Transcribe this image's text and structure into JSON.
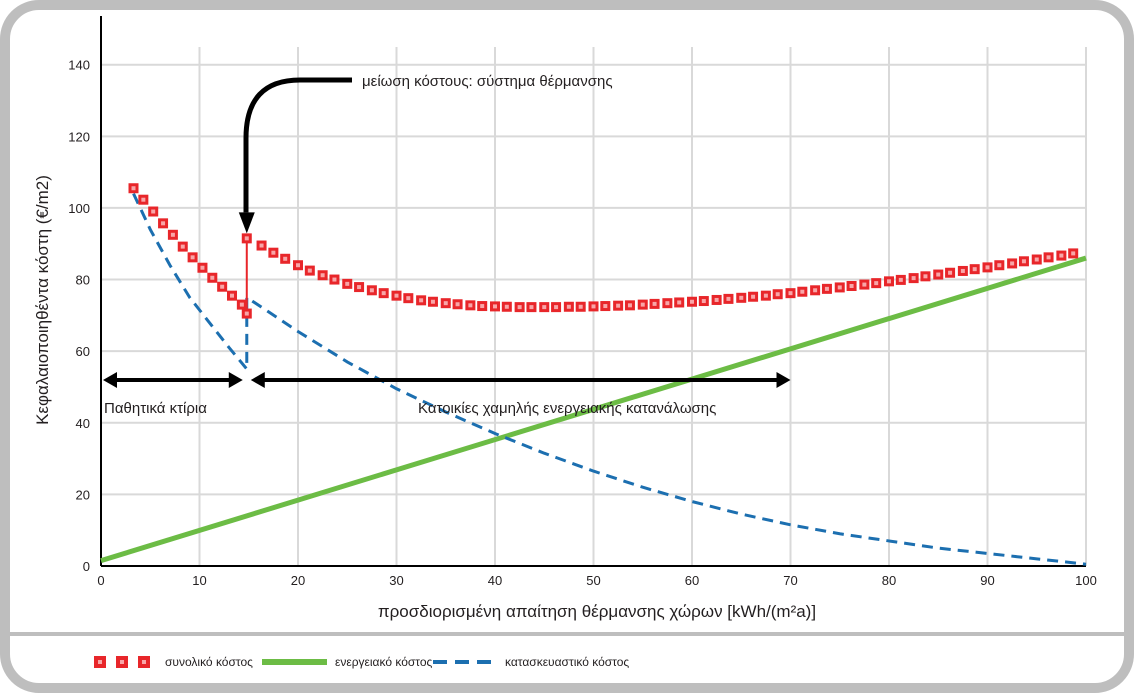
{
  "chart_data": {
    "type": "line",
    "title": "",
    "xlabel": "προσδιορισμένη απαίτηση θέρμανσης χώρων [kWh/(m²a)]",
    "ylabel": "Κεφαλαιοποιηθέντα κόστη (€/m2)",
    "xlim": [
      0,
      100
    ],
    "ylim": [
      0,
      155
    ],
    "x_ticks": [
      "0",
      "10",
      "20",
      "30",
      "40",
      "50",
      "60",
      "70",
      "80",
      "90",
      "100"
    ],
    "y_ticks": [
      "0",
      "20",
      "40",
      "60",
      "80",
      "100",
      "120",
      "140"
    ],
    "grid": true,
    "legend_position": "bottom",
    "series": [
      {
        "name": "συνολικό κόστος",
        "style": "square-markers",
        "color": "#e8262a",
        "points": [
          [
            3.3,
            105.5
          ],
          [
            4.3,
            102.3
          ],
          [
            5.3,
            99.0
          ],
          [
            6.3,
            95.7
          ],
          [
            7.3,
            92.5
          ],
          [
            8.3,
            89.2
          ],
          [
            9.3,
            86.2
          ],
          [
            10.3,
            83.3
          ],
          [
            11.3,
            80.5
          ],
          [
            12.3,
            78.0
          ],
          [
            13.3,
            75.5
          ],
          [
            14.3,
            73.0
          ],
          [
            14.8,
            70.5
          ],
          [
            14.8,
            91.5
          ],
          [
            16.3,
            89.5
          ],
          [
            17.5,
            87.5
          ],
          [
            18.7,
            85.8
          ],
          [
            20.0,
            84.0
          ],
          [
            21.2,
            82.5
          ],
          [
            22.5,
            81.2
          ],
          [
            23.7,
            80.0
          ],
          [
            25.0,
            78.8
          ],
          [
            26.2,
            77.9
          ],
          [
            27.5,
            77.0
          ],
          [
            28.7,
            76.2
          ],
          [
            30.0,
            75.5
          ],
          [
            31.2,
            74.8
          ],
          [
            32.5,
            74.2
          ],
          [
            33.7,
            73.8
          ],
          [
            35.0,
            73.4
          ],
          [
            36.2,
            73.1
          ],
          [
            37.5,
            72.8
          ],
          [
            38.7,
            72.6
          ],
          [
            40.0,
            72.5
          ],
          [
            41.2,
            72.4
          ],
          [
            42.5,
            72.3
          ],
          [
            43.7,
            72.3
          ],
          [
            45.0,
            72.3
          ],
          [
            46.2,
            72.3
          ],
          [
            47.5,
            72.4
          ],
          [
            48.7,
            72.4
          ],
          [
            50.0,
            72.5
          ],
          [
            51.2,
            72.6
          ],
          [
            52.5,
            72.7
          ],
          [
            53.7,
            72.8
          ],
          [
            55.0,
            73.0
          ],
          [
            56.2,
            73.2
          ],
          [
            57.5,
            73.4
          ],
          [
            58.7,
            73.6
          ],
          [
            60.0,
            73.8
          ],
          [
            61.2,
            74.0
          ],
          [
            62.5,
            74.3
          ],
          [
            63.7,
            74.6
          ],
          [
            65.0,
            74.9
          ],
          [
            66.2,
            75.2
          ],
          [
            67.5,
            75.5
          ],
          [
            68.7,
            75.9
          ],
          [
            70.0,
            76.2
          ],
          [
            71.2,
            76.6
          ],
          [
            72.5,
            77.0
          ],
          [
            73.7,
            77.4
          ],
          [
            75.0,
            77.8
          ],
          [
            76.2,
            78.2
          ],
          [
            77.5,
            78.6
          ],
          [
            78.7,
            79.0
          ],
          [
            80.0,
            79.5
          ],
          [
            81.2,
            79.9
          ],
          [
            82.5,
            80.4
          ],
          [
            83.7,
            80.9
          ],
          [
            85.0,
            81.4
          ],
          [
            86.2,
            81.9
          ],
          [
            87.5,
            82.4
          ],
          [
            88.7,
            82.9
          ],
          [
            90.0,
            83.4
          ],
          [
            91.2,
            84.0
          ],
          [
            92.5,
            84.5
          ],
          [
            93.7,
            85.1
          ],
          [
            95.0,
            85.6
          ],
          [
            96.2,
            86.2
          ],
          [
            97.5,
            86.7
          ],
          [
            98.7,
            87.3
          ]
        ]
      },
      {
        "name": "ενεργειακό κόστος",
        "style": "solid",
        "color": "#6cbc45",
        "points": [
          [
            0,
            1.5
          ],
          [
            100,
            86
          ]
        ]
      },
      {
        "name": "κατασκευαστικό κόστος",
        "style": "dashed",
        "color": "#1c6fb0",
        "points": [
          [
            3.3,
            104
          ],
          [
            5,
            94
          ],
          [
            7,
            84
          ],
          [
            9,
            75
          ],
          [
            11,
            68
          ],
          [
            13,
            61
          ],
          [
            14.8,
            55
          ],
          [
            14.8,
            75
          ],
          [
            17,
            71
          ],
          [
            20,
            65.5
          ],
          [
            25,
            57
          ],
          [
            30,
            49.5
          ],
          [
            35,
            43
          ],
          [
            40,
            37
          ],
          [
            45,
            31.5
          ],
          [
            50,
            26.5
          ],
          [
            55,
            22
          ],
          [
            60,
            18
          ],
          [
            65,
            14.5
          ],
          [
            70,
            11.5
          ],
          [
            75,
            9
          ],
          [
            80,
            7
          ],
          [
            85,
            5
          ],
          [
            90,
            3.5
          ],
          [
            95,
            2
          ],
          [
            100,
            0.5
          ]
        ]
      }
    ],
    "annotations": [
      {
        "text": "μείωση κόστους: σύστημα θέρμανσης"
      },
      {
        "text": "Παθητικά κτίρια",
        "x_range": [
          0,
          14.8
        ]
      },
      {
        "text": "Κατοικίες χαμηλής ενεργειακής κατανάλωσης",
        "x_range": [
          14.8,
          70
        ]
      }
    ]
  },
  "colors": {
    "frame_border": "#bebebe",
    "grid": "#d9d9d9",
    "total_cost": "#e8262a",
    "total_cost_marker_center": "#f8a6a8",
    "energy_cost": "#6cbc45",
    "construction_cost": "#1c6fb0",
    "arrows": "#000000",
    "text": "#231f20"
  }
}
